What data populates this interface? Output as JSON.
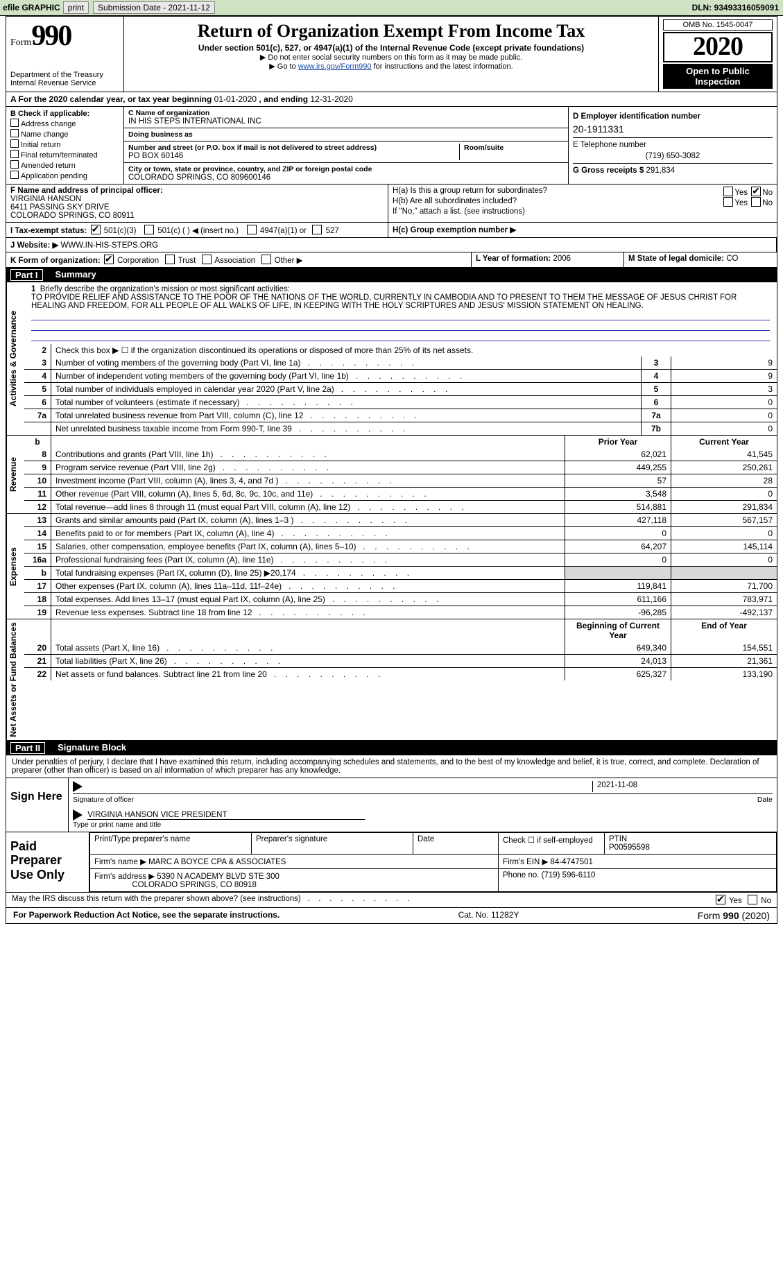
{
  "topbar": {
    "efile_label": "efile GRAPHIC",
    "print_btn": "print",
    "sub_date_btn": "Submission Date - 2021-11-12",
    "dln_label": "DLN: 93493316059091"
  },
  "title": {
    "form_word": "Form",
    "form_no": "990",
    "dept1": "Department of the Treasury",
    "dept2": "Internal Revenue Service",
    "main": "Return of Organization Exempt From Income Tax",
    "sub": "Under section 501(c), 527, or 4947(a)(1) of the Internal Revenue Code (except private foundations)",
    "note1": "Do not enter social security numbers on this form as it may be made public.",
    "note2_pre": "Go to ",
    "note2_link": "www.irs.gov/Form990",
    "note2_post": " for instructions and the latest information.",
    "omb": "OMB No. 1545-0047",
    "year": "2020",
    "open": "Open to Public Inspection"
  },
  "period": {
    "label_a": "A For the 2020 calendar year, or tax year beginning ",
    "begin": "01-01-2020",
    "mid": " , and ending ",
    "end": "12-31-2020"
  },
  "B": {
    "title": "B Check if applicable:",
    "opts": [
      "Address change",
      "Name change",
      "Initial return",
      "Final return/terminated",
      "Amended return",
      "Application pending"
    ]
  },
  "C": {
    "name_label": "C Name of organization",
    "name": "IN HIS STEPS INTERNATIONAL INC",
    "dba_label": "Doing business as",
    "dba": "",
    "street_label": "Number and street (or P.O. box if mail is not delivered to street address)",
    "room_label": "Room/suite",
    "street": "PO BOX 60146",
    "city_label": "City or town, state or province, country, and ZIP or foreign postal code",
    "city": "COLORADO SPRINGS, CO  809600146"
  },
  "D": {
    "label": "D Employer identification number",
    "value": "20-1911331"
  },
  "E": {
    "label": "E Telephone number",
    "value": "(719) 650-3082"
  },
  "G": {
    "label": "G Gross receipts $",
    "value": "291,834"
  },
  "F": {
    "label": "F  Name and address of principal officer:",
    "name": "VIRGINIA HANSON",
    "addr1": "6411 PASSING SKY DRIVE",
    "addr2": "COLORADO SPRINGS, CO  80911"
  },
  "H": {
    "a": "H(a)  Is this a group return for subordinates?",
    "b": "H(b)  Are all subordinates included?",
    "b_note": "If \"No,\" attach a list. (see instructions)",
    "c": "H(c)  Group exemption number ▶",
    "yes": "Yes",
    "no": "No"
  },
  "I": {
    "label": "I  Tax-exempt status:",
    "o1": "501(c)(3)",
    "o2": "501(c) (   ) ◀ (insert no.)",
    "o3": "4947(a)(1) or",
    "o4": "527"
  },
  "J": {
    "label": "J  Website: ▶",
    "value": "WWW.IN-HIS-STEPS.ORG"
  },
  "K": {
    "label": "K Form of organization:",
    "opts": [
      "Corporation",
      "Trust",
      "Association",
      "Other ▶"
    ]
  },
  "L": {
    "label": "L Year of formation:",
    "value": "2006"
  },
  "M": {
    "label": "M State of legal domicile:",
    "value": "CO"
  },
  "part1": {
    "bar_no": "Part I",
    "bar_title": "Summary",
    "vlab_ag": "Activities & Governance",
    "vlab_rev": "Revenue",
    "vlab_exp": "Expenses",
    "vlab_net": "Net Assets or Fund Balances",
    "line1_lbl": "Briefly describe the organization's mission or most significant activities:",
    "line1_txt": "TO PROVIDE RELIEF AND ASSISTANCE TO THE POOR OF THE NATIONS OF THE WORLD, CURRENTLY IN CAMBODIA AND TO PRESENT TO THEM THE MESSAGE OF JESUS CHRIST FOR HEALING AND FREEDOM, FOR ALL PEOPLE OF ALL WALKS OF LIFE, IN KEEPING WITH THE HOLY SCRIPTURES AND JESUS' MISSION STATEMENT ON HEALING.",
    "line2": "Check this box ▶ ☐ if the organization discontinued its operations or disposed of more than 25% of its net assets.",
    "rows_ag": [
      {
        "n": "3",
        "t": "Number of voting members of the governing body (Part VI, line 1a)",
        "box": "3",
        "v": "9"
      },
      {
        "n": "4",
        "t": "Number of independent voting members of the governing body (Part VI, line 1b)",
        "box": "4",
        "v": "9"
      },
      {
        "n": "5",
        "t": "Total number of individuals employed in calendar year 2020 (Part V, line 2a)",
        "box": "5",
        "v": "3"
      },
      {
        "n": "6",
        "t": "Total number of volunteers (estimate if necessary)",
        "box": "6",
        "v": "0"
      },
      {
        "n": "7a",
        "t": "Total unrelated business revenue from Part VIII, column (C), line 12",
        "box": "7a",
        "v": "0"
      },
      {
        "n": "",
        "t": "Net unrelated business taxable income from Form 990-T, line 39",
        "box": "7b",
        "v": "0"
      }
    ],
    "hdr_prior": "Prior Year",
    "hdr_curr": "Current Year",
    "rows_rev": [
      {
        "n": "8",
        "t": "Contributions and grants (Part VIII, line 1h)",
        "p": "62,021",
        "c": "41,545"
      },
      {
        "n": "9",
        "t": "Program service revenue (Part VIII, line 2g)",
        "p": "449,255",
        "c": "250,261"
      },
      {
        "n": "10",
        "t": "Investment income (Part VIII, column (A), lines 3, 4, and 7d )",
        "p": "57",
        "c": "28"
      },
      {
        "n": "11",
        "t": "Other revenue (Part VIII, column (A), lines 5, 6d, 8c, 9c, 10c, and 11e)",
        "p": "3,548",
        "c": "0"
      },
      {
        "n": "12",
        "t": "Total revenue—add lines 8 through 11 (must equal Part VIII, column (A), line 12)",
        "p": "514,881",
        "c": "291,834"
      }
    ],
    "rows_exp": [
      {
        "n": "13",
        "t": "Grants and similar amounts paid (Part IX, column (A), lines 1–3 )",
        "p": "427,118",
        "c": "567,157"
      },
      {
        "n": "14",
        "t": "Benefits paid to or for members (Part IX, column (A), line 4)",
        "p": "0",
        "c": "0"
      },
      {
        "n": "15",
        "t": "Salaries, other compensation, employee benefits (Part IX, column (A), lines 5–10)",
        "p": "64,207",
        "c": "145,114"
      },
      {
        "n": "16a",
        "t": "Professional fundraising fees (Part IX, column (A), line 11e)",
        "p": "0",
        "c": "0"
      },
      {
        "n": "b",
        "t": "Total fundraising expenses (Part IX, column (D), line 25) ▶20,174",
        "p": "",
        "c": "",
        "shade": true
      },
      {
        "n": "17",
        "t": "Other expenses (Part IX, column (A), lines 11a–11d, 11f–24e)",
        "p": "119,841",
        "c": "71,700"
      },
      {
        "n": "18",
        "t": "Total expenses. Add lines 13–17 (must equal Part IX, column (A), line 25)",
        "p": "611,166",
        "c": "783,971"
      },
      {
        "n": "19",
        "t": "Revenue less expenses. Subtract line 18 from line 12",
        "p": "-96,285",
        "c": "-492,137"
      }
    ],
    "hdr_beg": "Beginning of Current Year",
    "hdr_end": "End of Year",
    "rows_net": [
      {
        "n": "20",
        "t": "Total assets (Part X, line 16)",
        "p": "649,340",
        "c": "154,551"
      },
      {
        "n": "21",
        "t": "Total liabilities (Part X, line 26)",
        "p": "24,013",
        "c": "21,361"
      },
      {
        "n": "22",
        "t": "Net assets or fund balances. Subtract line 21 from line 20",
        "p": "625,327",
        "c": "133,190"
      }
    ]
  },
  "part2": {
    "bar_no": "Part II",
    "bar_title": "Signature Block",
    "decl": "Under penalties of perjury, I declare that I have examined this return, including accompanying schedules and statements, and to the best of my knowledge and belief, it is true, correct, and complete. Declaration of preparer (other than officer) is based on all information of which preparer has any knowledge.",
    "sign_here": "Sign Here",
    "sig_officer": "Signature of officer",
    "sig_date": "Date",
    "date_val": "2021-11-08",
    "name_title": "VIRGINIA HANSON  VICE PRESIDENT",
    "type_name": "Type or print name and title",
    "paid_prep": "Paid Preparer Use Only",
    "col_print": "Print/Type preparer's name",
    "col_sig": "Preparer's signature",
    "col_date": "Date",
    "col_self": "Check ☐ if self-employed",
    "col_ptin": "PTIN",
    "ptin": "P00595598",
    "firm_name_l": "Firm's name   ▶",
    "firm_name": "MARC A BOYCE CPA & ASSOCIATES",
    "firm_ein_l": "Firm's EIN ▶",
    "firm_ein": "84-4747501",
    "firm_addr_l": "Firm's address ▶",
    "firm_addr1": "5390 N ACADEMY BLVD STE 300",
    "firm_addr2": "COLORADO SPRINGS, CO  80918",
    "phone_l": "Phone no.",
    "phone": "(719) 596-6110",
    "discuss": "May the IRS discuss this return with the preparer shown above? (see instructions)"
  },
  "footer": {
    "left": "For Paperwork Reduction Act Notice, see the separate instructions.",
    "mid": "Cat. No. 11282Y",
    "right": "Form 990 (2020)"
  }
}
